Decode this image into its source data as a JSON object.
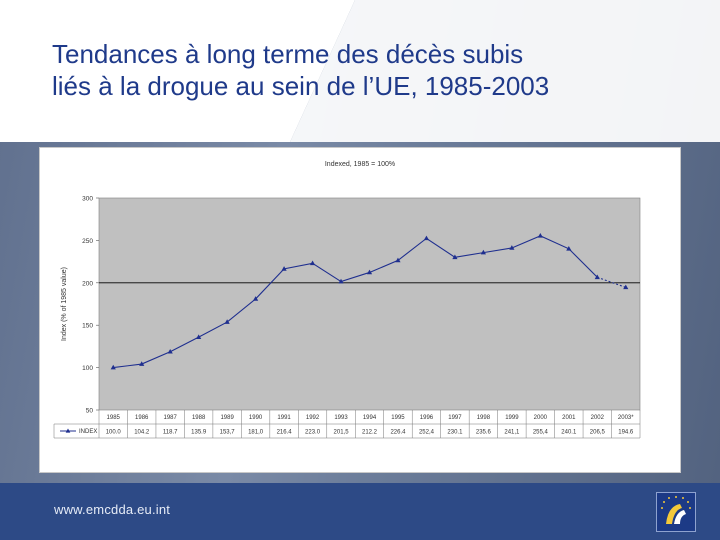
{
  "slide": {
    "title_line1": "Tendances à long terme des décès subis",
    "title_line2": "liés à la drogue au sein de l’UE, 1985-2003",
    "footer_url": "www.emcdda.eu.int",
    "logo_icon": "emcdda-logo-icon"
  },
  "colors": {
    "title": "#1f3a8a",
    "plot_bg": "#c0c0c0",
    "series": "#1f2f8f",
    "footer": "#2d4a86"
  },
  "chart_data": {
    "type": "line",
    "title": "Indexed, 1985 = 100%",
    "ylabel": "Index (% of 1985 value)",
    "xlabel": "",
    "ylim": [
      50,
      300
    ],
    "yticks": [
      50,
      100,
      150,
      200,
      250,
      300
    ],
    "grid": false,
    "reference_line": 200,
    "categories": [
      "1985",
      "1986",
      "1987",
      "1988",
      "1989",
      "1990",
      "1991",
      "1992",
      "1993",
      "1994",
      "1995",
      "1996",
      "1997",
      "1998",
      "1999",
      "2000",
      "2001",
      "2002",
      "2003*"
    ],
    "series": [
      {
        "name": "INDEX",
        "values": [
          100.0,
          104.2,
          118.7,
          135.9,
          153.7,
          181.0,
          216.4,
          223.0,
          201.5,
          212.2,
          226.4,
          252.4,
          230.1,
          235.6,
          241.1,
          255.4,
          240.1,
          206.5,
          194.6
        ],
        "value_labels": [
          "100.0",
          "104.2",
          "118.7",
          "135.9",
          "153,7",
          "181,0",
          "216.4",
          "223.0",
          "201,5",
          "212.2",
          "226.4",
          "252,4",
          "230.1",
          "235.6",
          "241,1",
          "255,4",
          "240.1",
          "206,5",
          "194.6"
        ],
        "dashed_last_segment": true
      }
    ],
    "legend": "table-left"
  }
}
